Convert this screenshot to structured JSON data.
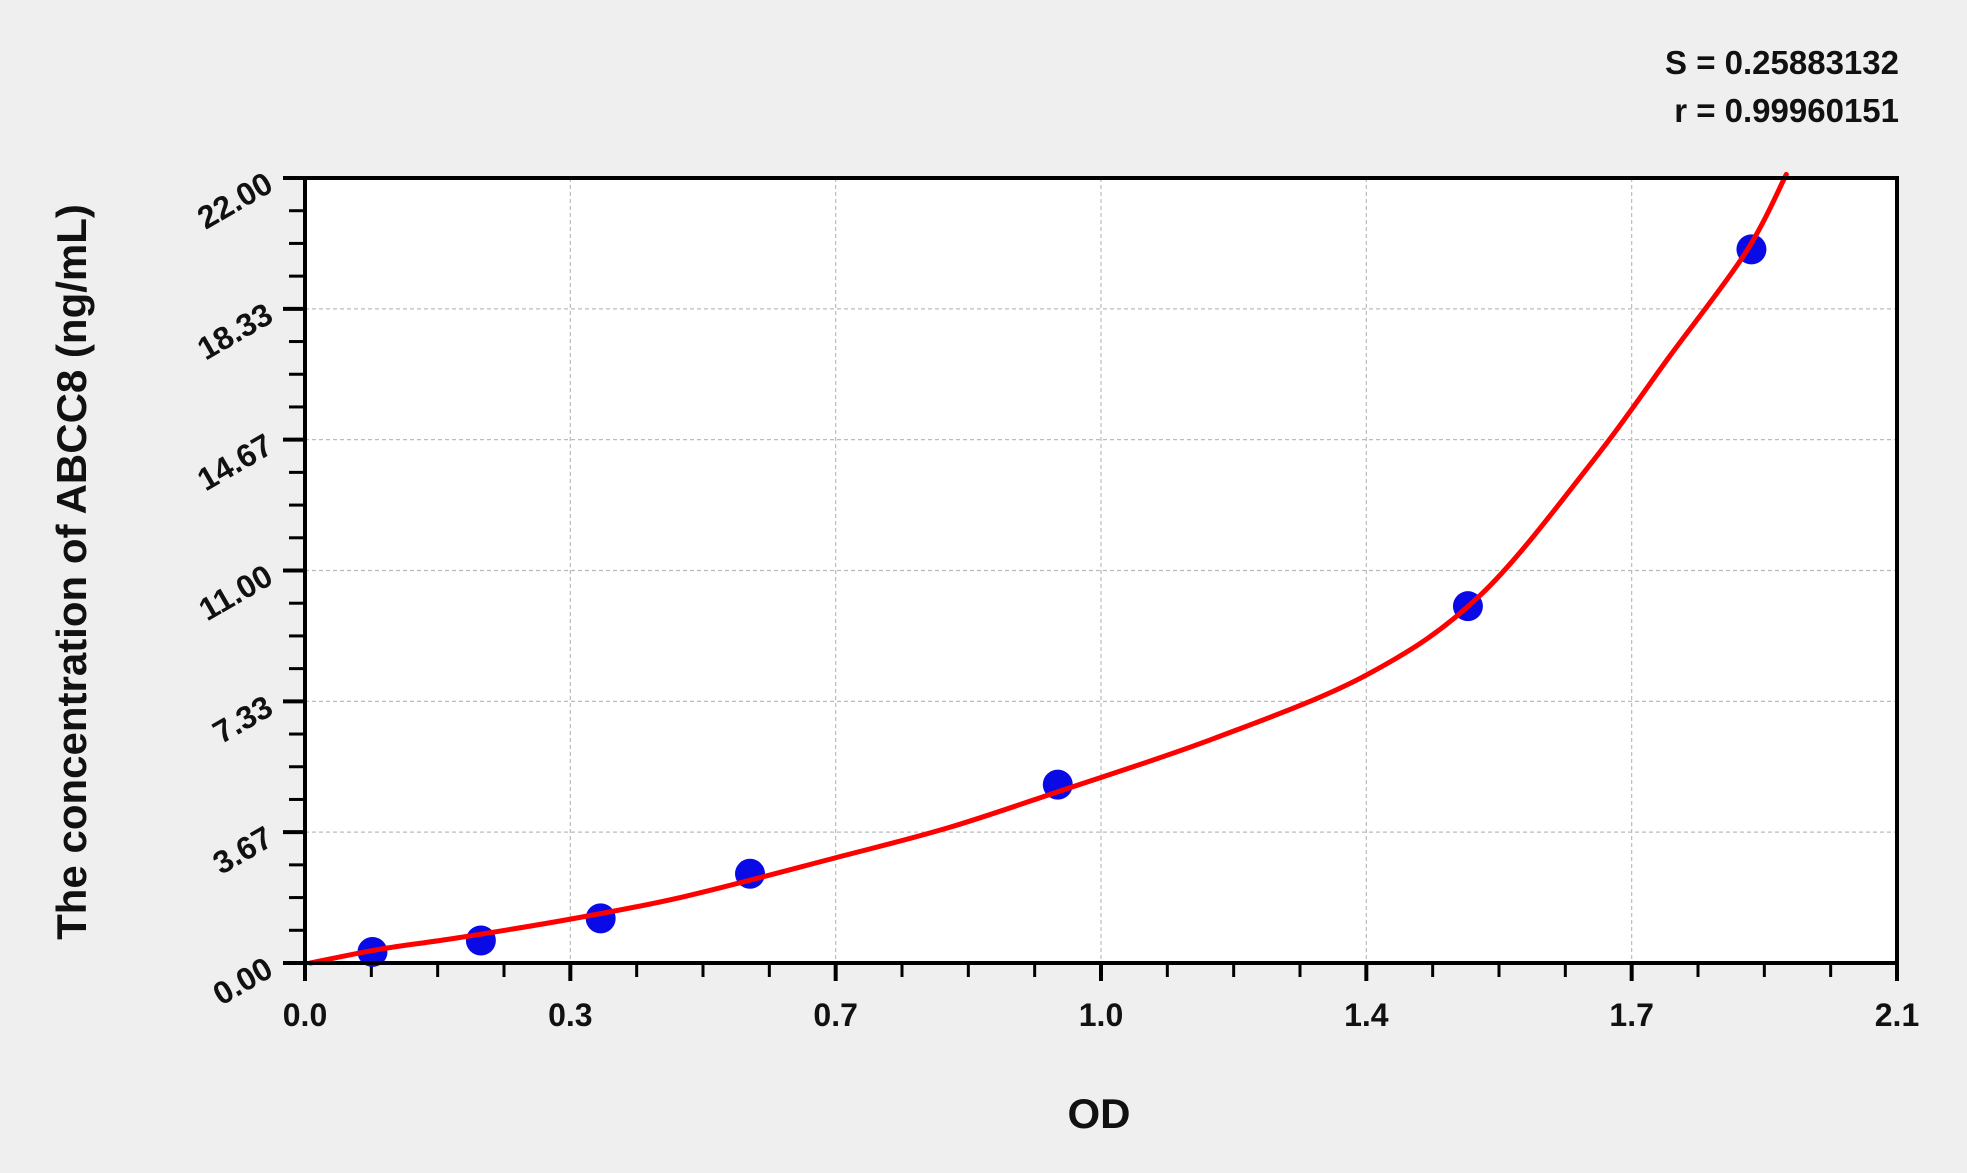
{
  "chart_data": {
    "type": "scatter",
    "title": "",
    "xlabel": "OD",
    "ylabel": "The concentration of ABCC8 (ng/mL)",
    "xlim": [
      0.0,
      2.1
    ],
    "ylim": [
      0.0,
      22.0
    ],
    "grid": true,
    "x_ticks": [
      0.0,
      0.35,
      0.7,
      1.05,
      1.4,
      1.75,
      2.1
    ],
    "x_tick_labels": [
      "0.0",
      "0.3",
      "0.7",
      "1.0",
      "1.4",
      "1.7",
      "2.1"
    ],
    "y_ticks": [
      0,
      3.667,
      7.333,
      11,
      14.667,
      18.333,
      22
    ],
    "y_tick_labels": [
      "0.00",
      "3.67",
      "7.33",
      "11.00",
      "14.67",
      "18.33",
      "22.00"
    ],
    "points": {
      "x": [
        0.089,
        0.232,
        0.39,
        0.587,
        0.993,
        1.534,
        1.908
      ],
      "y": [
        0.31,
        0.63,
        1.25,
        2.5,
        5.0,
        10.0,
        20.0
      ],
      "color": "#0a0ae6"
    },
    "fit_curve": {
      "x": [
        0.007,
        0.1,
        0.2,
        0.35,
        0.5,
        0.7,
        0.85,
        1.0,
        1.2,
        1.4,
        1.55,
        1.7,
        1.8,
        1.9,
        1.954
      ],
      "y": [
        0.0,
        0.39,
        0.7,
        1.23,
        1.86,
        2.95,
        3.8,
        4.85,
        6.3,
        8.07,
        10.3,
        14.1,
        17.0,
        19.9,
        22.1
      ],
      "color": "#ff0000"
    },
    "annotations": {
      "s": "S = 0.25883132",
      "r": "r = 0.99960151"
    }
  }
}
